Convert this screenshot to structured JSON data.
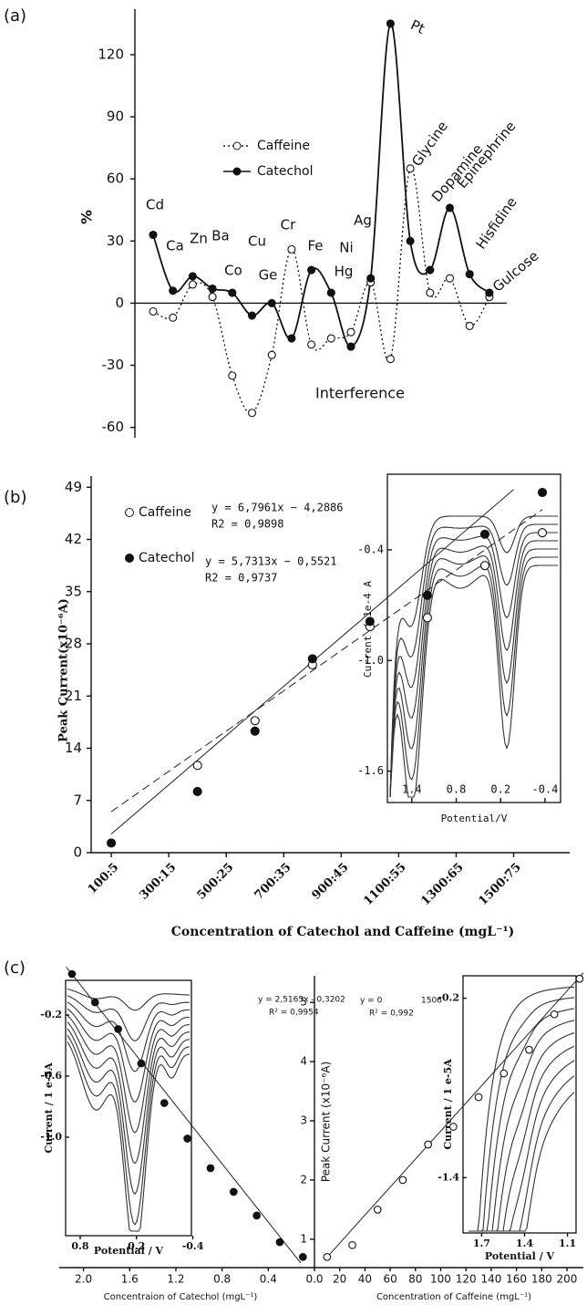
{
  "chart_data": [
    {
      "type": "line",
      "panel_label": "(a)",
      "ylabel": "%",
      "xlabel": "Interference",
      "categories": [
        "Cd",
        "Ca",
        "Zn",
        "Ba",
        "Co",
        "Cu",
        "Ge",
        "Cr",
        "Fe",
        "Hg",
        "Ni",
        "Ag",
        "Pt",
        "Glycine",
        "Dopamine",
        "Epinephrine",
        "Hisfidine",
        "Gulcose"
      ],
      "series": [
        {
          "name": "Caffeine",
          "color": "#111111",
          "line_style": "dotted",
          "marker": "open",
          "values": [
            -4,
            -7,
            9,
            3,
            -35,
            -53,
            -25,
            26,
            -20,
            -17,
            -14,
            10,
            -27,
            65,
            5,
            12,
            -11,
            3
          ]
        },
        {
          "name": "Catechol",
          "color": "#111111",
          "line_style": "solid",
          "marker": "filled",
          "values": [
            33,
            6,
            13,
            7,
            5,
            -6,
            0,
            -17,
            16,
            5,
            -21,
            12,
            135,
            30,
            16,
            46,
            14,
            5
          ]
        }
      ],
      "ylim": [
        -65,
        142
      ],
      "yticks": [
        -60,
        -30,
        0,
        30,
        60,
        90,
        120
      ]
    },
    {
      "type": "scatter",
      "panel_label": "(b)",
      "ylabel": "Peak Current(x10⁻⁶A)",
      "xlabel": "Concentration of Catechol and Caffeine (mgL⁻¹)",
      "x": [
        100,
        400,
        600,
        800,
        1000,
        1200,
        1400,
        1600
      ],
      "series": [
        {
          "name": "Caffeine",
          "color": "#111111",
          "marker": "open",
          "values": [
            null,
            11.7,
            17.7,
            25.2,
            30.3,
            31.5,
            38.5,
            42.9
          ]
        },
        {
          "name": "Catechol",
          "color": "#111111",
          "marker": "filled",
          "values": [
            1.3,
            8.2,
            16.3,
            26,
            31,
            34.5,
            42.7,
            48.3
          ]
        }
      ],
      "trendlines": [
        {
          "line_style": "solid",
          "x": [
            100,
            1500
          ],
          "values": [
            2.5,
            48.7
          ]
        },
        {
          "line_style": "dashed",
          "x": [
            100,
            1600
          ],
          "values": [
            5.5,
            46
          ]
        }
      ],
      "annotations": [
        "y = 6,7961x − 4,2886",
        "R2 = 0,9898",
        "y = 5,7313x − 0,5521",
        "R2 = 0,9737"
      ],
      "xlim": [
        30,
        1695
      ],
      "ylim": [
        0,
        50.5
      ],
      "xticks": [
        {
          "value": 100,
          "label": "100:5"
        },
        {
          "value": 300,
          "label": "300:15"
        },
        {
          "value": 500,
          "label": "500:25"
        },
        {
          "value": 700,
          "label": "700:35"
        },
        {
          "value": 900,
          "label": "900:45"
        },
        {
          "value": 1100,
          "label": "1100:55"
        },
        {
          "value": 1300,
          "label": "1300:65"
        },
        {
          "value": 1500,
          "label": "1500:75"
        }
      ],
      "yticks": [
        0,
        7,
        14,
        21,
        28,
        35,
        42,
        49
      ],
      "inset": {
        "xlabel": "Potential/V",
        "ylabel": "Current / 1e-4 A",
        "xlim": [
          1.73,
          -0.61
        ],
        "ylim": [
          -1.77,
          0.01
        ],
        "xticks": [
          1.4,
          0.8,
          0.2,
          -0.4
        ],
        "yticks": [
          {
            "value": -0.4,
            "label": "-0.4"
          },
          {
            "value": -1.0,
            "label": "-1.0"
          },
          {
            "value": -1.6,
            "label": "-1.6"
          }
        ]
      }
    },
    {
      "type": "scatter",
      "panel_label": "(c)",
      "xlabel": "Concentraion of Catechol (mgL⁻¹)",
      "x": [
        2.1,
        1.9,
        1.7,
        1.5,
        1.3,
        1.1,
        0.9,
        0.7,
        0.5,
        0.3,
        0.1
      ],
      "series": [
        {
          "name": "Catechol",
          "color": "#111111",
          "marker": "filled",
          "values": [
            5.48,
            5.0,
            4.55,
            3.97,
            3.3,
            2.7,
            2.2,
            1.8,
            1.4,
            0.95,
            0.7
          ]
        }
      ],
      "trendlines": [
        {
          "line_style": "solid",
          "x": [
            2.15,
            0.12
          ],
          "values": [
            5.6,
            0.6
          ]
        }
      ],
      "annotations": [
        "y = 2,5165x - 0,3202",
        "R² = 0,9954"
      ],
      "xlim": [
        2.21,
        0
      ],
      "ylim": [
        0.52,
        5.45
      ],
      "xticks": [
        {
          "value": 2.0,
          "label": "2.0"
        },
        1.6,
        1.2,
        0.8,
        0.4,
        {
          "value": 0,
          "label": "0.0"
        }
      ],
      "inset": {
        "xlabel": "Potential / V",
        "ylabel": "Current / 1 e-5A",
        "xlim": [
          0.955,
          -0.385
        ],
        "ylim": [
          -1.645,
          0.027
        ],
        "xticks": [
          0.8,
          0.2,
          -0.4
        ],
        "yticks": [
          -0.2,
          -0.6,
          {
            "value": -1.0,
            "label": "-1.0"
          }
        ]
      }
    },
    {
      "type": "scatter",
      "ylabel": "Peak Current (x10⁻⁶A)",
      "xlabel": "Concentration of Caffeine (mgL⁻¹)",
      "x": [
        10,
        30,
        50,
        70,
        90,
        110,
        130,
        150,
        170,
        190,
        210
      ],
      "series": [
        {
          "name": "Caffeine",
          "color": "#111111",
          "marker": "open",
          "values": [
            0.7,
            0.9,
            1.5,
            2.0,
            2.6,
            2.9,
            3.4,
            3.8,
            4.2,
            4.8,
            5.4
          ]
        }
      ],
      "trendlines": [
        {
          "line_style": "solid",
          "x": [
            8,
            213
          ],
          "values": [
            0.65,
            5.5
          ]
        }
      ],
      "annotations": [
        "y = 0",
        "1506",
        "R² = 0,992"
      ],
      "xlim": [
        0,
        213
      ],
      "ylim": [
        0.52,
        5.45
      ],
      "xticks": [
        20,
        40,
        60,
        80,
        100,
        120,
        140,
        160,
        180,
        200
      ],
      "yticks": [
        1,
        2,
        3,
        4,
        5
      ],
      "inset": {
        "xlabel": "Potential / V",
        "ylabel": "Current / 1 e-5A",
        "xlim": [
          1.83,
          1.04
        ],
        "ylim": [
          -1.77,
          -0.05
        ],
        "xticks": [
          1.7,
          1.4,
          1.1
        ],
        "yticks": [
          -0.2,
          -1.4
        ]
      }
    }
  ]
}
